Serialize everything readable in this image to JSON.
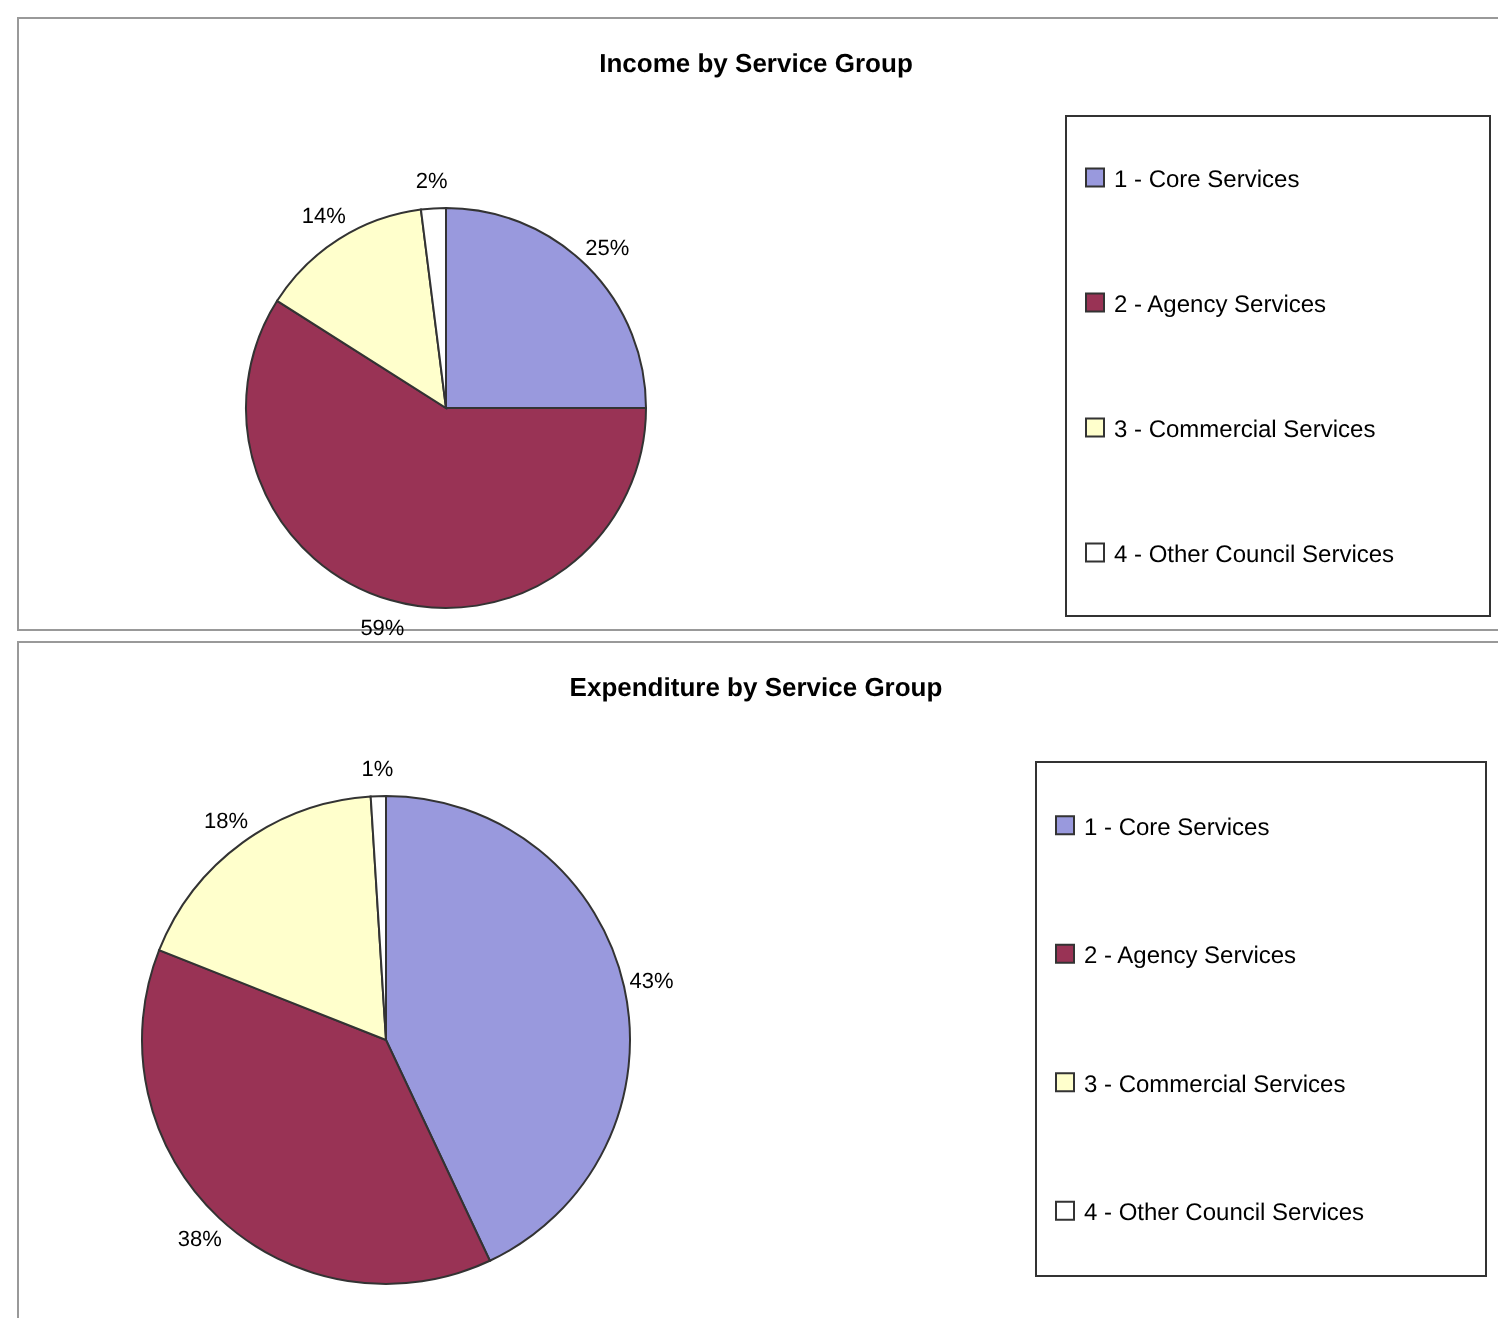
{
  "chart_data": [
    {
      "type": "pie",
      "title": "Income by Service Group",
      "categories": [
        "1 - Core Services",
        "2 - Agency Services",
        "3 - Commercial Services",
        "4 - Other Council Services"
      ],
      "values": [
        25,
        59,
        14,
        2
      ],
      "colors": [
        "#9999dd",
        "#993355",
        "#ffffcc",
        "#ffffff"
      ],
      "value_labels": [
        "25%",
        "59%",
        "14%",
        "2%"
      ],
      "legend": "right"
    },
    {
      "type": "pie",
      "title": "Expenditure by Service Group",
      "categories": [
        "1 - Core Services",
        "2 - Agency Services",
        "3 - Commercial Services",
        "4 - Other Council Services"
      ],
      "values": [
        43,
        38,
        18,
        1
      ],
      "colors": [
        "#9999dd",
        "#993355",
        "#ffffcc",
        "#ffffff"
      ],
      "value_labels": [
        "43%",
        "38%",
        "18%",
        "1%"
      ],
      "legend": "right"
    }
  ]
}
